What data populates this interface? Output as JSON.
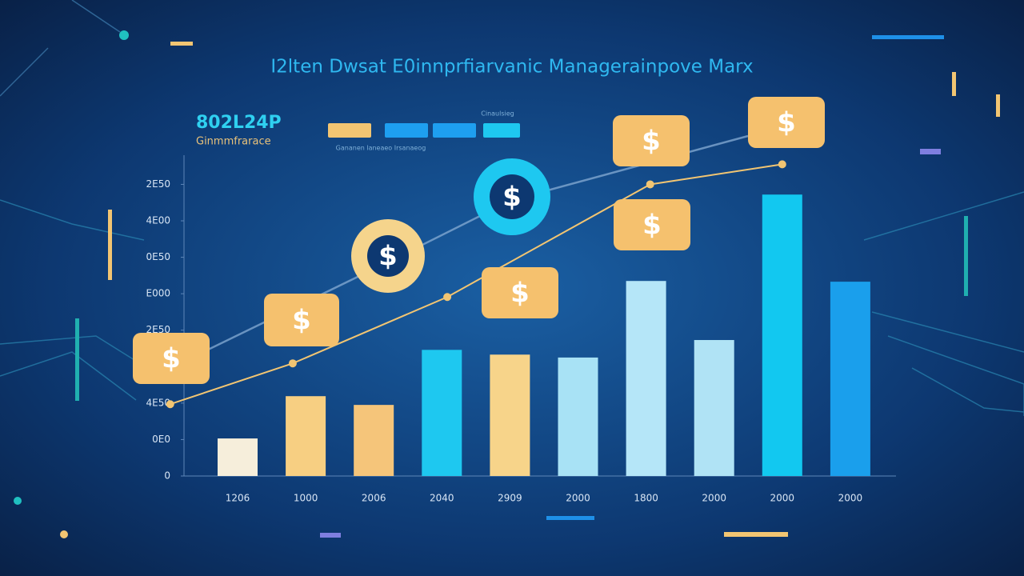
{
  "chart_data": {
    "type": "bar",
    "title": "I2lten Dwsat E0innprfiarvanic Managerainpove Marx",
    "kpi_value": "802L24P",
    "kpi_label": "Ginmmfrarace",
    "legend_caption": "Cinaulsieg",
    "legend_note": "Gananen laneaeo Irsanaeog",
    "badge_text": "$",
    "categories": [
      "1206",
      "1000",
      "2006",
      "2040",
      "2909",
      "2000",
      "1800",
      "2000",
      "2000",
      "2000"
    ],
    "values": [
      103,
      219,
      195,
      346,
      333,
      325,
      535,
      373,
      772,
      533
    ],
    "colors": [
      "#f6eedb",
      "#f7cf82",
      "#f5c57a",
      "#1ec8f0",
      "#f7d48a",
      "#a8e2f5",
      "#b5e6f8",
      "#b0e3f5",
      "#12c8f0",
      "#1a9fec"
    ],
    "line": {
      "x": [
        -0.99,
        0.81,
        3.08,
        6.06,
        8.0
      ],
      "values": [
        197,
        309,
        491,
        800,
        855
      ],
      "color": "#f2c572"
    },
    "ylim": [
      0,
      880
    ],
    "yticks": [
      0,
      {
        "value": 100,
        "label": "0E0"
      },
      {
        "value": 200,
        "label": "4E50"
      },
      {
        "value": 400,
        "label": "2E50"
      },
      {
        "value": 500,
        "label": "E000"
      },
      {
        "value": 600,
        "label": "0E50"
      },
      {
        "value": 700,
        "label": "4E00"
      },
      {
        "value": 800,
        "label": "2E50"
      }
    ]
  }
}
